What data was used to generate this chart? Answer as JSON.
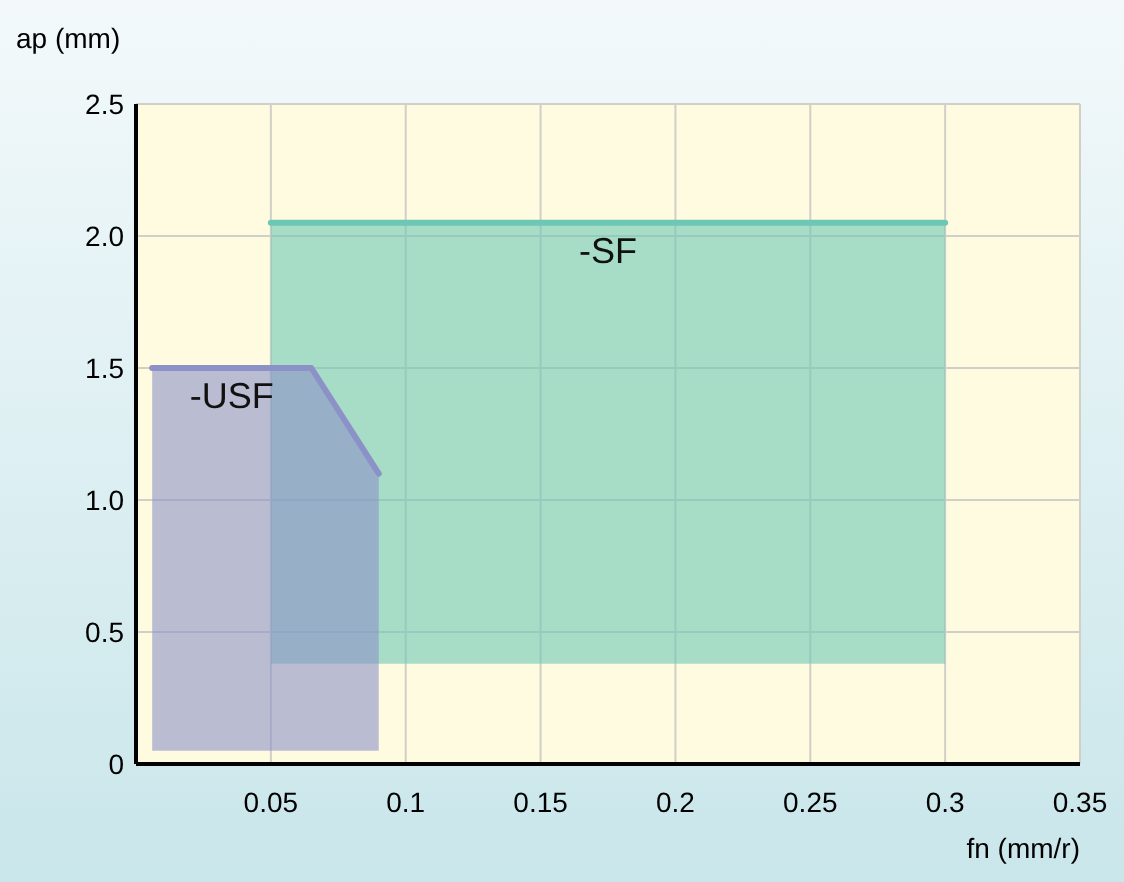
{
  "chart_data": {
    "type": "line",
    "xlabel": "fn (mm/r)",
    "ylabel": "ap (mm)",
    "xlim": [
      0,
      0.35
    ],
    "xticks": [
      0.05,
      0.1,
      0.15,
      0.2,
      0.25,
      0.3,
      0.35
    ],
    "ylim": [
      0,
      2.5
    ],
    "yticks": [
      0,
      0.5,
      {
        "value": 1,
        "label": "1.0"
      },
      1.5,
      {
        "value": 2,
        "label": "2.0"
      },
      2.5
    ],
    "grid": true,
    "series": [
      {
        "name": "-SF",
        "color": "#6cc8b4",
        "x": [
          0.05,
          0.3
        ],
        "lower": [
          0.38,
          0.38
        ],
        "upper": [
          2.05,
          2.05
        ],
        "values": [
          2.05,
          2.05
        ]
      },
      {
        "name": "-USF",
        "color": "#8c92c8",
        "x": [
          0.006,
          0.065,
          0.09
        ],
        "lower": [
          0.05,
          0.05,
          0.05
        ],
        "upper": [
          1.5,
          1.5,
          1.1
        ],
        "values": [
          1.5,
          1.5,
          1.1
        ]
      }
    ]
  }
}
